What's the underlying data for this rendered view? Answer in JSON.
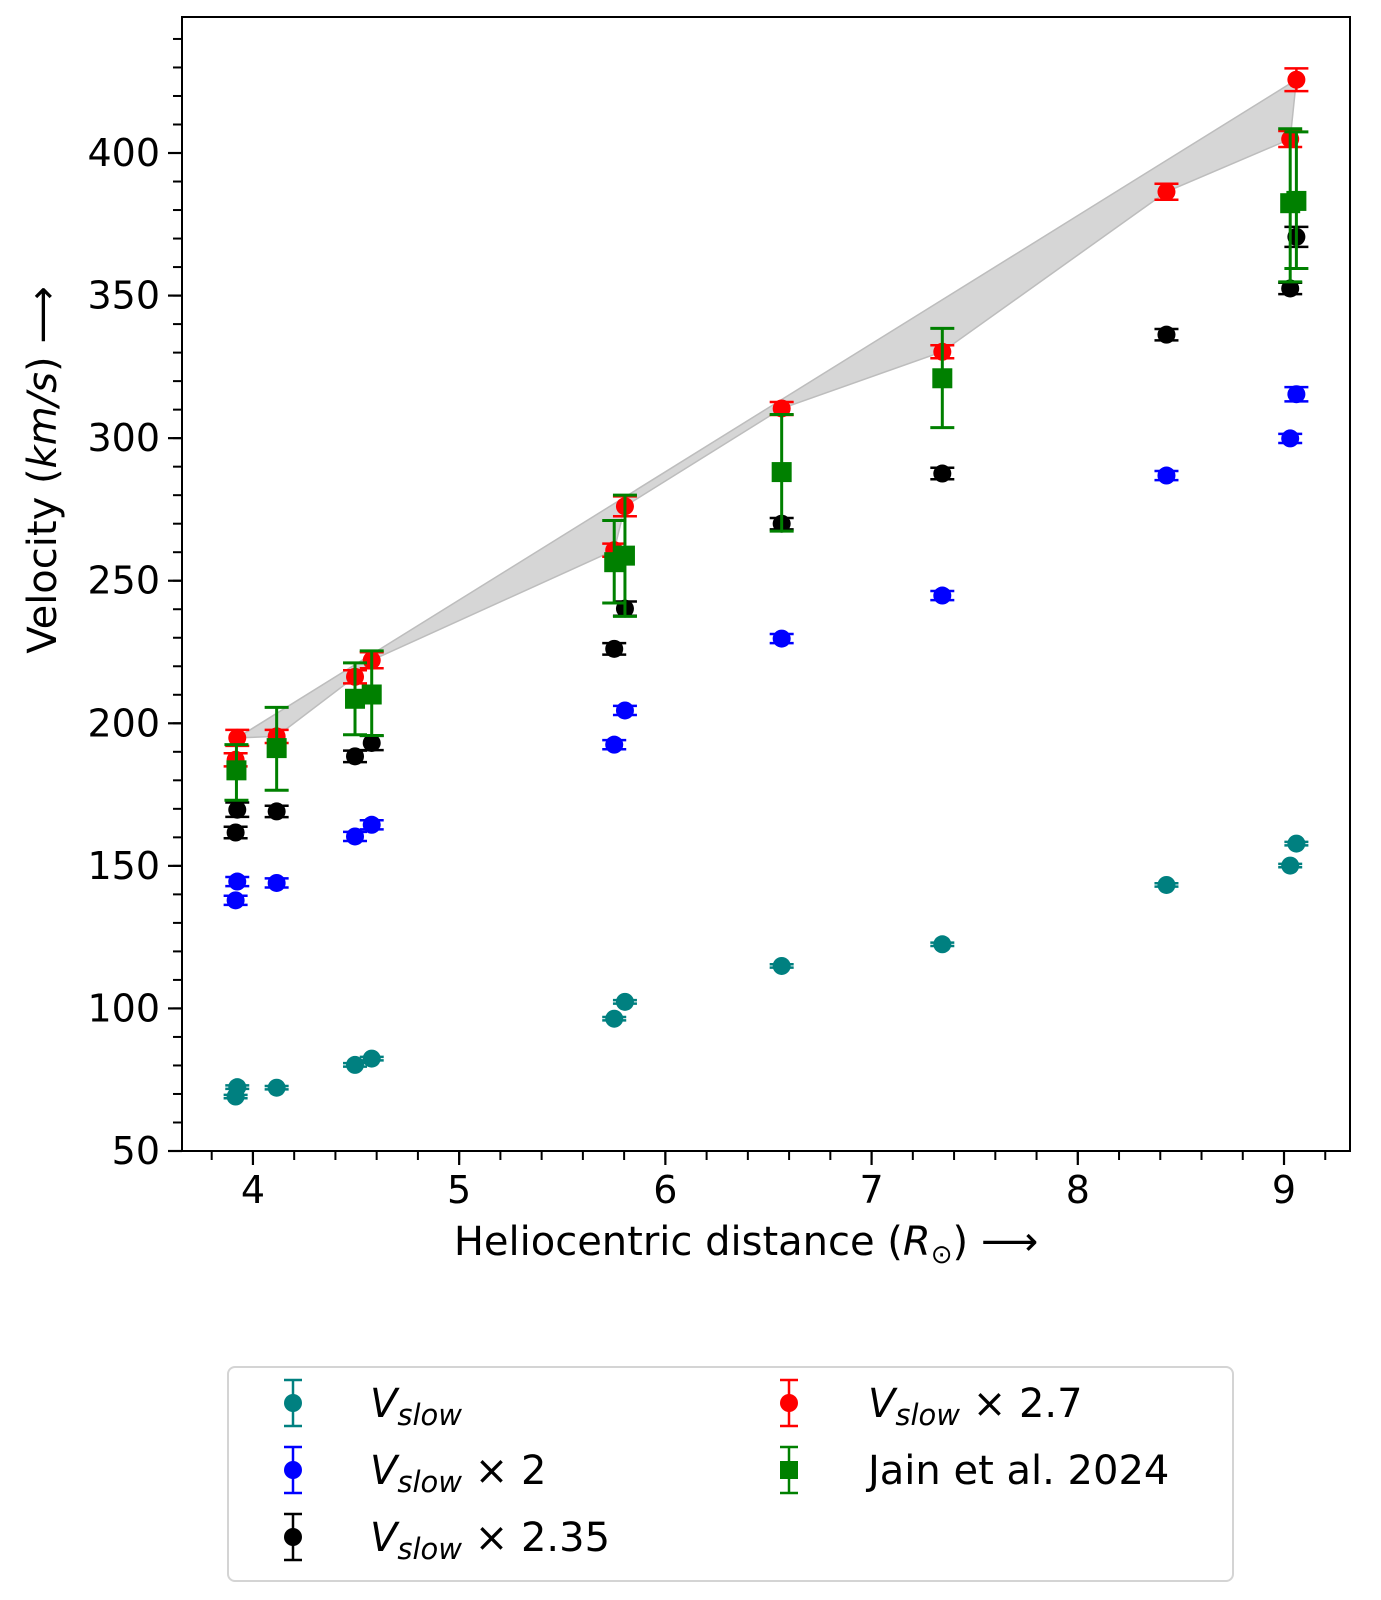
{
  "chart_data": {
    "type": "scatter",
    "title": "",
    "xlabel": "Heliocentric distance (R⊙) ⟶",
    "xlabel_parts": {
      "prefix": "Heliocentric distance (",
      "symbol": "R",
      "subscript": "⊙",
      "suffix": ") ⟶"
    },
    "ylabel": "Velocity (km/s) ⟶",
    "ylabel_parts": {
      "prefix": "Velocity (",
      "italic": "km/s",
      "suffix": ") ⟶"
    },
    "xlim": [
      3.656,
      9.32
    ],
    "ylim": [
      50,
      447.7
    ],
    "xticks": [
      4,
      5,
      6,
      7,
      8,
      9
    ],
    "xtick_labels": [
      "4",
      "5",
      "6",
      "7",
      "8",
      "9"
    ],
    "x_minor_step": 0.2,
    "yticks": [
      50,
      100,
      150,
      200,
      250,
      300,
      350,
      400
    ],
    "ytick_labels": [
      "50",
      "100",
      "150",
      "200",
      "250",
      "300",
      "350",
      "400"
    ],
    "y_minor_step": 10,
    "grid": false,
    "legend_position": "below",
    "fill_region": {
      "color": "#d6d6d6",
      "edge_color": "#bdbdbd",
      "upper_series": "Vslow x 2.7",
      "lower_series": "Vslow x 2",
      "point_indices": [
        1,
        2,
        3,
        4,
        5,
        6,
        7,
        8,
        9,
        10,
        11,
        12
      ]
    },
    "series": [
      {
        "name": "Vslow",
        "legend": {
          "base": "V",
          "sub": "slow",
          "suffix": ""
        },
        "color": "#008080",
        "marker": "circle",
        "x": [
          3.916,
          3.924,
          4.115,
          4.495,
          4.576,
          5.752,
          5.804,
          6.564,
          7.343,
          8.43,
          9.03,
          9.06
        ],
        "y": [
          69.1,
          72.4,
          72.2,
          80.2,
          82.4,
          96.4,
          102.3,
          114.9,
          122.5,
          143.3,
          150.1,
          157.8
        ],
        "yerr": [
          0.6,
          0.6,
          0.6,
          0.6,
          0.6,
          0.6,
          0.6,
          0.6,
          0.6,
          0.6,
          0.6,
          0.6
        ]
      },
      {
        "name": "Vslow x 2",
        "legend": {
          "base": "V",
          "sub": "slow",
          "suffix": " × 2"
        },
        "color": "#0000ff",
        "marker": "circle",
        "x": [
          3.916,
          3.924,
          4.115,
          4.495,
          4.576,
          5.752,
          5.804,
          6.564,
          7.343,
          8.43,
          9.03,
          9.06
        ],
        "y": [
          137.9,
          144.5,
          144.0,
          160.3,
          164.4,
          192.5,
          204.5,
          229.7,
          244.8,
          286.9,
          299.9,
          315.4
        ],
        "yerr": [
          1.6,
          1.6,
          1.6,
          1.6,
          1.6,
          1.6,
          1.6,
          1.6,
          1.6,
          1.6,
          1.6,
          2.5
        ]
      },
      {
        "name": "Vslow x 2.35",
        "legend": {
          "base": "V",
          "sub": "slow",
          "suffix": " × 2.35"
        },
        "color": "#000000",
        "marker": "circle",
        "x": [
          3.916,
          3.924,
          4.115,
          4.495,
          4.576,
          5.752,
          5.804,
          6.564,
          7.343,
          8.43,
          9.03,
          9.06
        ],
        "y": [
          161.7,
          169.7,
          169.1,
          188.4,
          193.1,
          226.1,
          240.2,
          270.0,
          287.6,
          336.3,
          352.5,
          370.6
        ],
        "yerr": [
          2.0,
          2.5,
          2.0,
          2.0,
          2.5,
          2.0,
          2.5,
          2.0,
          2.0,
          2.0,
          2.0,
          3.5
        ]
      },
      {
        "name": "Vslow x 2.7",
        "legend": {
          "base": "V",
          "sub": "slow",
          "suffix": " × 2.7"
        },
        "color": "#ff0000",
        "marker": "circle",
        "x": [
          3.916,
          3.924,
          4.115,
          4.495,
          4.576,
          5.752,
          5.804,
          6.564,
          7.343,
          8.43,
          9.03,
          9.06
        ],
        "y": [
          187.2,
          194.9,
          195.4,
          216.3,
          222.1,
          260.7,
          276.1,
          310.4,
          330.3,
          386.4,
          404.9,
          425.7
        ],
        "yerr": [
          2.3,
          2.8,
          2.3,
          2.3,
          2.8,
          2.3,
          3.5,
          2.3,
          2.3,
          2.8,
          2.8,
          4.0
        ]
      },
      {
        "name": "Jain et al. 2024",
        "legend": {
          "base": "Jain et al. 2024",
          "sub": "",
          "suffix": ""
        },
        "color": "#008000",
        "marker": "square",
        "x": [
          3.92,
          4.115,
          4.495,
          4.576,
          5.752,
          5.804,
          6.564,
          7.343,
          9.03,
          9.06
        ],
        "y": [
          183.5,
          191.3,
          208.6,
          210.1,
          256.5,
          258.8,
          288.1,
          321.0,
          382.4,
          383.2
        ],
        "yerr_low": [
          10.5,
          14.8,
          12.6,
          14.4,
          14.3,
          21.3,
          20.7,
          17.3,
          27.6,
          23.7
        ],
        "yerr_high": [
          9.0,
          14.3,
          12.6,
          15.3,
          14.6,
          21.2,
          20.2,
          17.5,
          26.1,
          24.2
        ]
      }
    ]
  }
}
